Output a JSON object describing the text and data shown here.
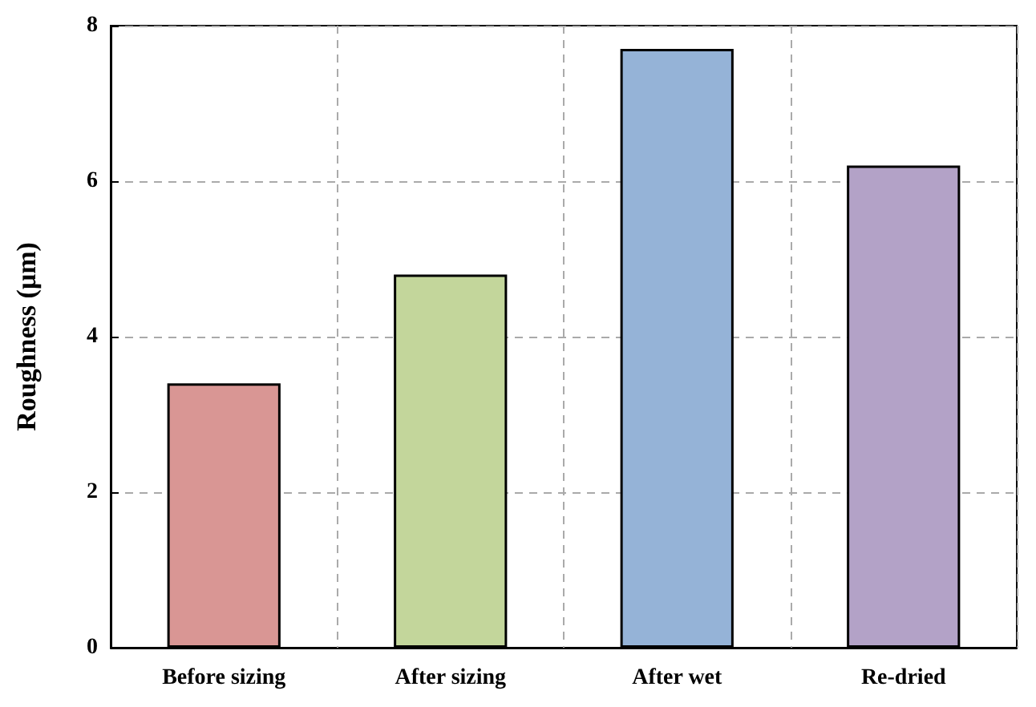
{
  "chart_data": {
    "type": "bar",
    "ylabel": "Roughness (μm)",
    "categories": [
      "Before sizing",
      "After sizing",
      "After wet",
      "Re-dried"
    ],
    "values": [
      3.4,
      4.8,
      7.7,
      6.2
    ],
    "colors": [
      "#d99694",
      "#c3d69b",
      "#95b3d7",
      "#b3a2c7"
    ],
    "ylim": [
      0,
      8
    ],
    "yticks": [
      0,
      2,
      4,
      6,
      8
    ],
    "grid": true
  }
}
